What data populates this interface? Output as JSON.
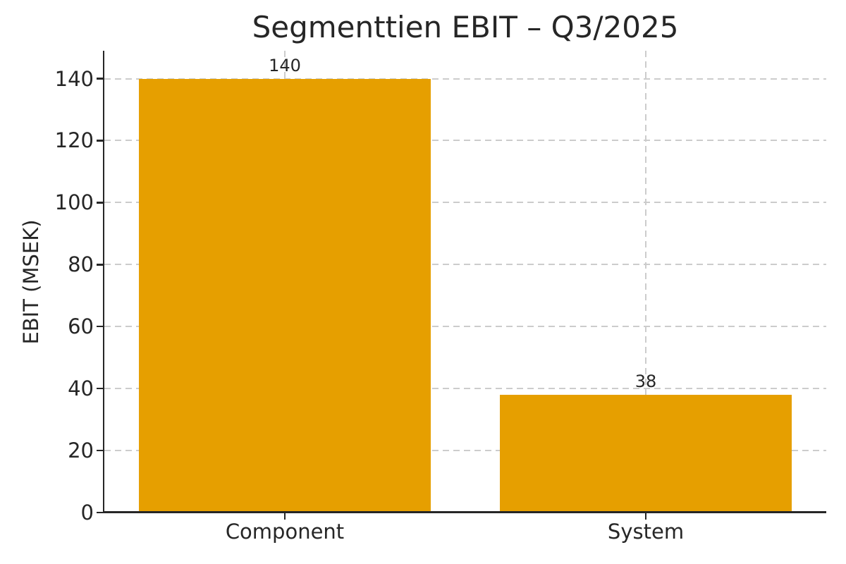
{
  "chart_data": {
    "type": "bar",
    "title": "Segmenttien EBIT – Q3/2025",
    "ylabel": "EBIT (MSEK)",
    "xlabel": "",
    "categories": [
      "Component",
      "System"
    ],
    "values": [
      140,
      38
    ],
    "bar_value_labels": [
      "140",
      "38"
    ],
    "yticks": [
      0,
      20,
      40,
      60,
      80,
      100,
      120,
      140
    ],
    "ylim": [
      0,
      149
    ],
    "bar_color": "#E69F00",
    "grid_color": "#cccccc",
    "text_color": "#262626",
    "spine_color": "#262626",
    "grid_style": "dashed",
    "grid_axes": "both",
    "legend": "none",
    "bar_width_fraction": 0.81
  }
}
